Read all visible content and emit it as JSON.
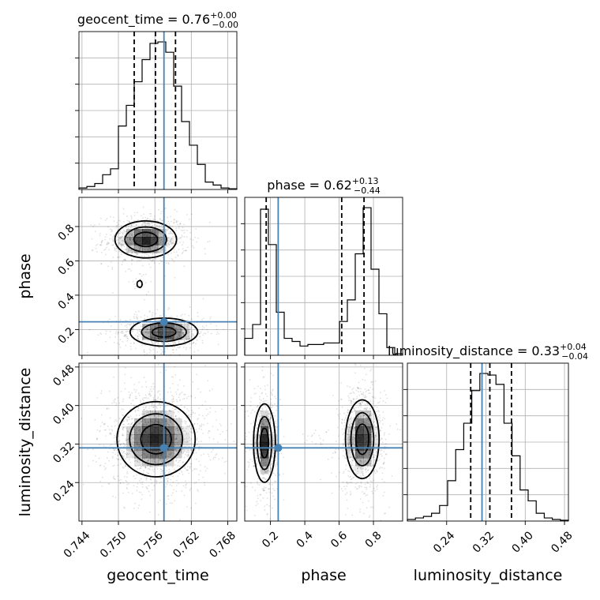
{
  "chart_data": {
    "type": "corner",
    "parameters": [
      {
        "name": "geocent_time",
        "xlabel": "geocent_time",
        "ylabel": "",
        "range": [
          0.7435,
          0.7695
        ],
        "ticks": [
          0.744,
          0.75,
          0.756,
          0.762,
          0.768
        ],
        "tick_labels": [
          "0.744",
          "0.750",
          "0.756",
          "0.762",
          "0.768"
        ],
        "title": {
          "main": "geocent_time = 0.76",
          "sup": "+0.00",
          "sub": "−0.00"
        },
        "truth": 0.7575,
        "quantiles": [
          0.7526,
          0.7561,
          0.7594
        ],
        "hist_edges": [
          0.7435,
          0.7448,
          0.7461,
          0.7474,
          0.7487,
          0.75,
          0.7513,
          0.7526,
          0.7539,
          0.7552,
          0.7565,
          0.7578,
          0.7591,
          0.7604,
          0.7617,
          0.763,
          0.7643,
          0.7656,
          0.7669,
          0.7682,
          0.7695
        ],
        "hist_values": [
          0.01,
          0.02,
          0.04,
          0.1,
          0.14,
          0.43,
          0.57,
          0.73,
          0.88,
          0.99,
          1.0,
          0.93,
          0.7,
          0.46,
          0.3,
          0.17,
          0.05,
          0.03,
          0.01,
          0.005
        ]
      },
      {
        "name": "phase",
        "xlabel": "phase",
        "ylabel": "phase",
        "range": [
          0.05,
          0.97
        ],
        "ticks": [
          0.2,
          0.4,
          0.6,
          0.8
        ],
        "tick_labels": [
          "0.2",
          "0.4",
          "0.6",
          "0.8"
        ],
        "title": {
          "main": "phase = 0.62",
          "sup": "+0.13",
          "sub": "−0.44"
        },
        "truth": 0.245,
        "quantiles": [
          0.175,
          0.615,
          0.745
        ],
        "hist_edges": [
          0.05,
          0.096,
          0.142,
          0.188,
          0.234,
          0.28,
          0.326,
          0.372,
          0.418,
          0.464,
          0.51,
          0.556,
          0.602,
          0.648,
          0.694,
          0.74,
          0.786,
          0.832,
          0.878,
          0.924,
          0.97
        ],
        "hist_values": [
          0.11,
          0.2,
          0.95,
          0.72,
          0.28,
          0.11,
          0.09,
          0.06,
          0.07,
          0.07,
          0.08,
          0.08,
          0.22,
          0.36,
          0.66,
          0.96,
          0.56,
          0.27,
          0.05,
          0.01
        ]
      },
      {
        "name": "luminosity_distance",
        "xlabel": "luminosity_distance",
        "ylabel": "luminosity_distance",
        "range": [
          0.16,
          0.488
        ],
        "ticks": [
          0.24,
          0.32,
          0.4,
          0.48
        ],
        "tick_labels": [
          "0.24",
          "0.32",
          "0.40",
          "0.48"
        ],
        "title": {
          "main": "luminosity_distance = 0.33",
          "sup": "+0.04",
          "sub": "−0.04"
        },
        "truth": 0.312,
        "quantiles": [
          0.289,
          0.328,
          0.372
        ],
        "hist_edges": [
          0.16,
          0.1764,
          0.1928,
          0.2092,
          0.2256,
          0.242,
          0.2584,
          0.2748,
          0.2912,
          0.3076,
          0.324,
          0.3404,
          0.3568,
          0.3732,
          0.3896,
          0.406,
          0.4224,
          0.4388,
          0.4552,
          0.4716,
          0.488
        ],
        "hist_values": [
          0.01,
          0.02,
          0.03,
          0.05,
          0.1,
          0.26,
          0.46,
          0.63,
          0.84,
          0.95,
          0.94,
          0.88,
          0.63,
          0.42,
          0.2,
          0.13,
          0.05,
          0.02,
          0.01,
          0.005
        ]
      }
    ],
    "pairs": [
      {
        "x_param": 0,
        "y_param": 1,
        "blobs": [
          {
            "center": [
              0.7545,
              0.725
            ],
            "sigma": [
              0.0026,
              0.055
            ],
            "weight": 1.0
          },
          {
            "center": [
              0.7575,
              0.185
            ],
            "sigma": [
              0.0029,
              0.042
            ],
            "weight": 0.95
          },
          {
            "center": [
              0.7535,
              0.465
            ],
            "sigma": [
              0.0006,
              0.03
            ],
            "weight": 0.2
          }
        ]
      },
      {
        "x_param": 0,
        "y_param": 2,
        "blobs": [
          {
            "center": [
              0.7562,
              0.33
            ],
            "sigma": [
              0.0033,
              0.04
            ],
            "weight": 1.0
          }
        ]
      },
      {
        "x_param": 1,
        "y_param": 2,
        "blobs": [
          {
            "center": [
              0.165,
              0.322
            ],
            "sigma": [
              0.032,
              0.042
            ],
            "weight": 1.0
          },
          {
            "center": [
              0.735,
              0.33
            ],
            "sigma": [
              0.05,
              0.042
            ],
            "weight": 1.0
          },
          {
            "center": [
              0.46,
              0.333
            ],
            "sigma": [
              0.04,
              0.008
            ],
            "weight": 0.12
          }
        ]
      }
    ]
  }
}
